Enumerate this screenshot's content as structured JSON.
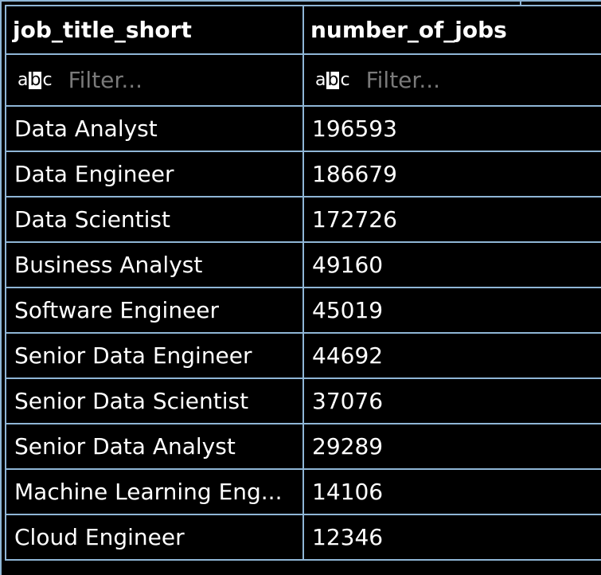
{
  "table": {
    "columns": [
      {
        "label": "job_title_short",
        "filter_placeholder": "Filter..."
      },
      {
        "label": "number_of_jobs",
        "filter_placeholder": "Filter..."
      }
    ],
    "filter_icon_text": {
      "a": "a",
      "b": "b",
      "c": "c"
    },
    "rows": [
      {
        "job_title_short": "Data Analyst",
        "number_of_jobs": "196593"
      },
      {
        "job_title_short": "Data Engineer",
        "number_of_jobs": "186679"
      },
      {
        "job_title_short": "Data Scientist",
        "number_of_jobs": "172726"
      },
      {
        "job_title_short": "Business Analyst",
        "number_of_jobs": "49160"
      },
      {
        "job_title_short": "Software Engineer",
        "number_of_jobs": "45019"
      },
      {
        "job_title_short": "Senior Data Engineer",
        "number_of_jobs": "44692"
      },
      {
        "job_title_short": "Senior Data Scientist",
        "number_of_jobs": "37076"
      },
      {
        "job_title_short": "Senior Data Analyst",
        "number_of_jobs": "29289"
      },
      {
        "job_title_short": "Machine Learning Eng...",
        "number_of_jobs": "14106"
      },
      {
        "job_title_short": "Cloud Engineer",
        "number_of_jobs": "12346"
      }
    ]
  },
  "colors": {
    "background": "#000000",
    "grid_border": "#8fb6d6",
    "text": "#ffffff",
    "placeholder": "#7a7a7a"
  }
}
